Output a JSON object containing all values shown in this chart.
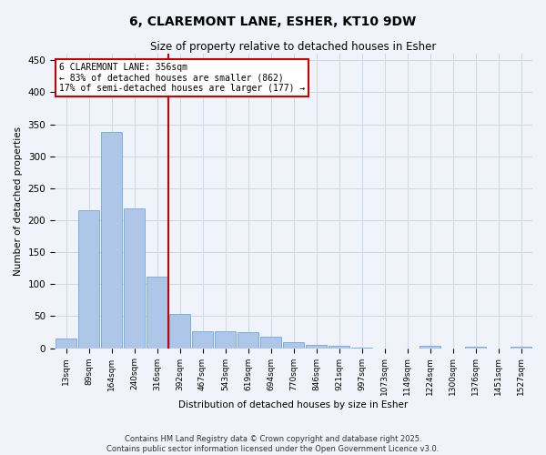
{
  "title": "6, CLAREMONT LANE, ESHER, KT10 9DW",
  "subtitle": "Size of property relative to detached houses in Esher",
  "xlabel": "Distribution of detached houses by size in Esher",
  "ylabel": "Number of detached properties",
  "categories": [
    "13sqm",
    "89sqm",
    "164sqm",
    "240sqm",
    "316sqm",
    "392sqm",
    "467sqm",
    "543sqm",
    "619sqm",
    "694sqm",
    "770sqm",
    "846sqm",
    "921sqm",
    "997sqm",
    "1073sqm",
    "1149sqm",
    "1224sqm",
    "1300sqm",
    "1376sqm",
    "1451sqm",
    "1527sqm"
  ],
  "values": [
    15,
    216,
    338,
    218,
    112,
    53,
    27,
    26,
    25,
    18,
    9,
    5,
    4,
    1,
    0,
    0,
    3,
    0,
    2,
    0,
    2
  ],
  "bar_color": "#aec6e8",
  "bar_edgecolor": "#5a9fd4",
  "vline_x": 4.5,
  "vline_color": "#cc0000",
  "annotation_text": "6 CLAREMONT LANE: 356sqm\n← 83% of detached houses are smaller (862)\n17% of semi-detached houses are larger (177) →",
  "annotation_box_color": "#ffffff",
  "annotation_box_edgecolor": "#cc0000",
  "ylim": [
    0,
    460
  ],
  "yticks": [
    0,
    50,
    100,
    150,
    200,
    250,
    300,
    350,
    400,
    450
  ],
  "grid_color": "#d0d8e8",
  "background_color": "#f0f4fa",
  "footer": "Contains HM Land Registry data © Crown copyright and database right 2025.\nContains public sector information licensed under the Open Government Licence v3.0."
}
